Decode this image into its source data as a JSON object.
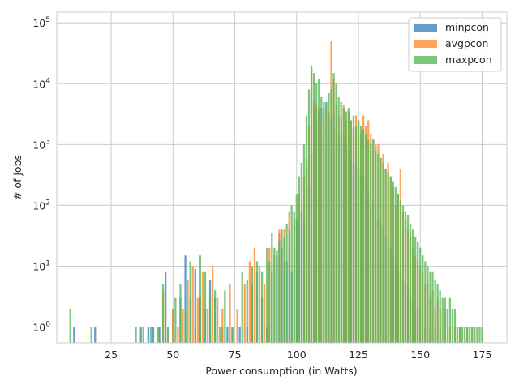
{
  "chart_data": {
    "type": "histogram",
    "xlabel": "Power consumption (in Watts)",
    "ylabel": "# of jobs",
    "xlim": [
      3,
      185
    ],
    "ylim": [
      0.55,
      150000
    ],
    "yscale": "log",
    "grid": true,
    "legend_position": "top-right",
    "x_ticks": [
      {
        "value": 25,
        "label": "25"
      },
      {
        "value": 50,
        "label": "50"
      },
      {
        "value": 75,
        "label": "75"
      },
      {
        "value": 100,
        "label": "100"
      },
      {
        "value": 125,
        "label": "125"
      },
      {
        "value": 150,
        "label": "150"
      },
      {
        "value": 175,
        "label": "175"
      }
    ],
    "y_ticks": [
      {
        "value": 1,
        "base": "10",
        "exp": "0"
      },
      {
        "value": 10,
        "base": "10",
        "exp": "1"
      },
      {
        "value": 100,
        "base": "10",
        "exp": "2"
      },
      {
        "value": 1000,
        "base": "10",
        "exp": "3"
      },
      {
        "value": 10000,
        "base": "10",
        "exp": "4"
      },
      {
        "value": 100000,
        "base": "10",
        "exp": "5"
      }
    ],
    "series": [
      {
        "name": "minpcon",
        "color": "#3a86c1",
        "points": [
          [
            10,
            1
          ],
          [
            18.5,
            1
          ],
          [
            37,
            1
          ],
          [
            40,
            1
          ],
          [
            42,
            1
          ],
          [
            44.5,
            1
          ],
          [
            47,
            8
          ],
          [
            50,
            2
          ],
          [
            53,
            3
          ],
          [
            55,
            15
          ],
          [
            57,
            3
          ],
          [
            59,
            9
          ],
          [
            61,
            3
          ],
          [
            63,
            2
          ],
          [
            65,
            6
          ],
          [
            67,
            3
          ],
          [
            70,
            1
          ],
          [
            72,
            1
          ],
          [
            74,
            1
          ],
          [
            77,
            1
          ],
          [
            80,
            1
          ],
          [
            82,
            5
          ],
          [
            84,
            8
          ],
          [
            86,
            3
          ],
          [
            88,
            1
          ],
          [
            90,
            8
          ],
          [
            92,
            15
          ],
          [
            93,
            35
          ],
          [
            94,
            20
          ],
          [
            95,
            12
          ],
          [
            96,
            12
          ],
          [
            97,
            18
          ],
          [
            98,
            8
          ],
          [
            100,
            60
          ],
          [
            101,
            40
          ],
          [
            102,
            80
          ],
          [
            103,
            60
          ],
          [
            104,
            400
          ],
          [
            105,
            200
          ],
          [
            106,
            700
          ],
          [
            107,
            4000
          ],
          [
            108,
            2500
          ],
          [
            109,
            3500
          ],
          [
            110,
            4000
          ],
          [
            111,
            3500
          ],
          [
            112,
            5000
          ],
          [
            113,
            3000
          ],
          [
            114,
            2500
          ],
          [
            115,
            3000
          ],
          [
            116,
            2000
          ],
          [
            117,
            1500
          ],
          [
            118,
            1500
          ],
          [
            119,
            1200
          ],
          [
            120,
            1000
          ],
          [
            121,
            800
          ],
          [
            122,
            600
          ],
          [
            123,
            500
          ],
          [
            124,
            500
          ],
          [
            125,
            400
          ],
          [
            126,
            300
          ],
          [
            127,
            300
          ],
          [
            128,
            200
          ],
          [
            129,
            150
          ],
          [
            130,
            100
          ],
          [
            131,
            120
          ],
          [
            132,
            80
          ],
          [
            133,
            60
          ],
          [
            134,
            50
          ],
          [
            135,
            40
          ],
          [
            136,
            30
          ],
          [
            137,
            25
          ],
          [
            138,
            20
          ],
          [
            139,
            15
          ],
          [
            140,
            12
          ],
          [
            141,
            10
          ],
          [
            142,
            8
          ],
          [
            143,
            6
          ],
          [
            144,
            5
          ],
          [
            145,
            4
          ],
          [
            146,
            3
          ],
          [
            147,
            3
          ],
          [
            148,
            2
          ],
          [
            149,
            2
          ],
          [
            150,
            2
          ],
          [
            152,
            1
          ],
          [
            154,
            1
          ],
          [
            156,
            1
          ],
          [
            158,
            1
          ]
        ]
      },
      {
        "name": "avgpcon",
        "color": "#ff8c2e",
        "points": [
          [
            46,
            4
          ],
          [
            48,
            1
          ],
          [
            50,
            2
          ],
          [
            52,
            1
          ],
          [
            54,
            2
          ],
          [
            56,
            6
          ],
          [
            58,
            10
          ],
          [
            60,
            3
          ],
          [
            62,
            8
          ],
          [
            64,
            2
          ],
          [
            66,
            10
          ],
          [
            68,
            3
          ],
          [
            70,
            2
          ],
          [
            73,
            5
          ],
          [
            76,
            2
          ],
          [
            79,
            5
          ],
          [
            81,
            12
          ],
          [
            83,
            20
          ],
          [
            85,
            10
          ],
          [
            87,
            5
          ],
          [
            89,
            20
          ],
          [
            91,
            15
          ],
          [
            93,
            40
          ],
          [
            95,
            40
          ],
          [
            97,
            80
          ],
          [
            99,
            60
          ],
          [
            101,
            150
          ],
          [
            103,
            300
          ],
          [
            104,
            600
          ],
          [
            105,
            2000
          ],
          [
            106,
            18000
          ],
          [
            107,
            5000
          ],
          [
            108,
            4500
          ],
          [
            109,
            4000
          ],
          [
            110,
            2500
          ],
          [
            111,
            4000
          ],
          [
            112,
            4000
          ],
          [
            113,
            3500
          ],
          [
            114,
            50000
          ],
          [
            115,
            12000
          ],
          [
            116,
            4500
          ],
          [
            117,
            3000
          ],
          [
            118,
            2800
          ],
          [
            119,
            4500
          ],
          [
            120,
            2500
          ],
          [
            121,
            3500
          ],
          [
            122,
            2500
          ],
          [
            123,
            1800
          ],
          [
            124,
            3000
          ],
          [
            125,
            2500
          ],
          [
            126,
            1500
          ],
          [
            127,
            3000
          ],
          [
            128,
            2000
          ],
          [
            129,
            2500
          ],
          [
            130,
            1500
          ],
          [
            131,
            1200
          ],
          [
            132,
            1000
          ],
          [
            133,
            1000
          ],
          [
            134,
            600
          ],
          [
            135,
            700
          ],
          [
            136,
            400
          ],
          [
            137,
            500
          ],
          [
            138,
            300
          ],
          [
            139,
            200
          ],
          [
            140,
            100
          ],
          [
            141,
            150
          ],
          [
            142,
            400
          ],
          [
            143,
            80
          ],
          [
            144,
            60
          ],
          [
            145,
            40
          ],
          [
            146,
            30
          ],
          [
            147,
            20
          ],
          [
            148,
            15
          ],
          [
            149,
            12
          ],
          [
            150,
            10
          ],
          [
            151,
            8
          ],
          [
            152,
            5
          ],
          [
            153,
            5
          ],
          [
            154,
            3
          ],
          [
            155,
            4
          ],
          [
            156,
            2
          ],
          [
            157,
            3
          ],
          [
            158,
            2
          ],
          [
            160,
            2
          ],
          [
            162,
            1
          ],
          [
            164,
            1
          ],
          [
            166,
            1
          ],
          [
            169,
            1
          ],
          [
            171,
            1
          ]
        ]
      },
      {
        "name": "maxpcon",
        "color": "#5bb85b",
        "points": [
          [
            8.5,
            2
          ],
          [
            17,
            1
          ],
          [
            35,
            1
          ],
          [
            38,
            1
          ],
          [
            41,
            1
          ],
          [
            44,
            1
          ],
          [
            46,
            5
          ],
          [
            48,
            1
          ],
          [
            51,
            3
          ],
          [
            53,
            5
          ],
          [
            55,
            2
          ],
          [
            57,
            12
          ],
          [
            59,
            1
          ],
          [
            61,
            15
          ],
          [
            63,
            8
          ],
          [
            65,
            3
          ],
          [
            67,
            4
          ],
          [
            69,
            1
          ],
          [
            71,
            4
          ],
          [
            74,
            1
          ],
          [
            78,
            8
          ],
          [
            80,
            6
          ],
          [
            82,
            10
          ],
          [
            84,
            12
          ],
          [
            86,
            8
          ],
          [
            88,
            20
          ],
          [
            89,
            12
          ],
          [
            90,
            35
          ],
          [
            91,
            20
          ],
          [
            92,
            18
          ],
          [
            93,
            25
          ],
          [
            94,
            40
          ],
          [
            95,
            30
          ],
          [
            96,
            50
          ],
          [
            97,
            40
          ],
          [
            98,
            100
          ],
          [
            99,
            80
          ],
          [
            100,
            150
          ],
          [
            101,
            300
          ],
          [
            102,
            500
          ],
          [
            103,
            1000
          ],
          [
            104,
            3000
          ],
          [
            105,
            8000
          ],
          [
            106,
            20000
          ],
          [
            107,
            15000
          ],
          [
            108,
            10000
          ],
          [
            109,
            12000
          ],
          [
            110,
            6000
          ],
          [
            111,
            5000
          ],
          [
            112,
            4500
          ],
          [
            113,
            7000
          ],
          [
            114,
            8000
          ],
          [
            115,
            15000
          ],
          [
            116,
            10000
          ],
          [
            117,
            6000
          ],
          [
            118,
            5000
          ],
          [
            119,
            4000
          ],
          [
            120,
            3500
          ],
          [
            121,
            4000
          ],
          [
            122,
            2500
          ],
          [
            123,
            3000
          ],
          [
            124,
            2000
          ],
          [
            125,
            2500
          ],
          [
            126,
            2000
          ],
          [
            127,
            1800
          ],
          [
            128,
            1500
          ],
          [
            129,
            1200
          ],
          [
            130,
            1000
          ],
          [
            131,
            1200
          ],
          [
            132,
            800
          ],
          [
            133,
            700
          ],
          [
            134,
            600
          ],
          [
            135,
            500
          ],
          [
            136,
            400
          ],
          [
            137,
            350
          ],
          [
            138,
            300
          ],
          [
            139,
            250
          ],
          [
            140,
            200
          ],
          [
            141,
            150
          ],
          [
            142,
            120
          ],
          [
            143,
            100
          ],
          [
            144,
            80
          ],
          [
            145,
            70
          ],
          [
            146,
            50
          ],
          [
            147,
            40
          ],
          [
            148,
            30
          ],
          [
            149,
            25
          ],
          [
            150,
            20
          ],
          [
            151,
            15
          ],
          [
            152,
            12
          ],
          [
            153,
            10
          ],
          [
            154,
            8
          ],
          [
            155,
            8
          ],
          [
            156,
            6
          ],
          [
            157,
            5
          ],
          [
            158,
            4
          ],
          [
            159,
            3
          ],
          [
            160,
            3
          ],
          [
            161,
            2
          ],
          [
            162,
            3
          ],
          [
            163,
            2
          ],
          [
            164,
            2
          ],
          [
            165,
            1
          ],
          [
            166,
            1
          ],
          [
            167,
            1
          ],
          [
            168,
            1
          ],
          [
            169,
            1
          ],
          [
            170,
            1
          ],
          [
            171,
            1
          ],
          [
            172,
            1
          ],
          [
            173,
            1
          ],
          [
            174,
            1
          ],
          [
            175,
            1
          ]
        ]
      }
    ]
  }
}
